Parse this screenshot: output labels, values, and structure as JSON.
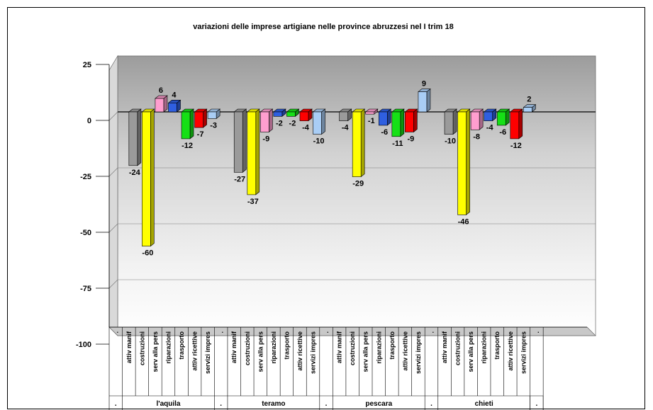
{
  "chart_data": {
    "type": "bar",
    "title": "variazioni delle imprese artigiane nelle province abruzzesi nel I trim 18",
    "ylim": [
      -100,
      25
    ],
    "yticks": [
      "25",
      "0",
      "-25",
      "-50",
      "-75",
      "-100"
    ],
    "categories": [
      "attiv manif",
      "costruzioni",
      "serv alla pers",
      "riparazioni",
      "trasporto",
      "attiv ricettive",
      "servizi impres"
    ],
    "separator_label": ".",
    "groups": [
      {
        "name": "l'aquila",
        "values": [
          -24,
          -60,
          6,
          4,
          -12,
          -7,
          -3
        ]
      },
      {
        "name": "teramo",
        "values": [
          -27,
          -37,
          -9,
          -2,
          -2,
          -4,
          -10
        ]
      },
      {
        "name": "pescara",
        "values": [
          -4,
          -29,
          -1,
          -6,
          -11,
          -9,
          9
        ]
      },
      {
        "name": "chieti",
        "values": [
          -10,
          -46,
          -8,
          -4,
          -6,
          -12,
          2
        ]
      }
    ],
    "colors": [
      "#9a9a9a",
      "#ffff00",
      "#ff9ecf",
      "#2f5fe0",
      "#16e016",
      "#ff0000",
      "#a9cdf5"
    ],
    "grid": true
  }
}
